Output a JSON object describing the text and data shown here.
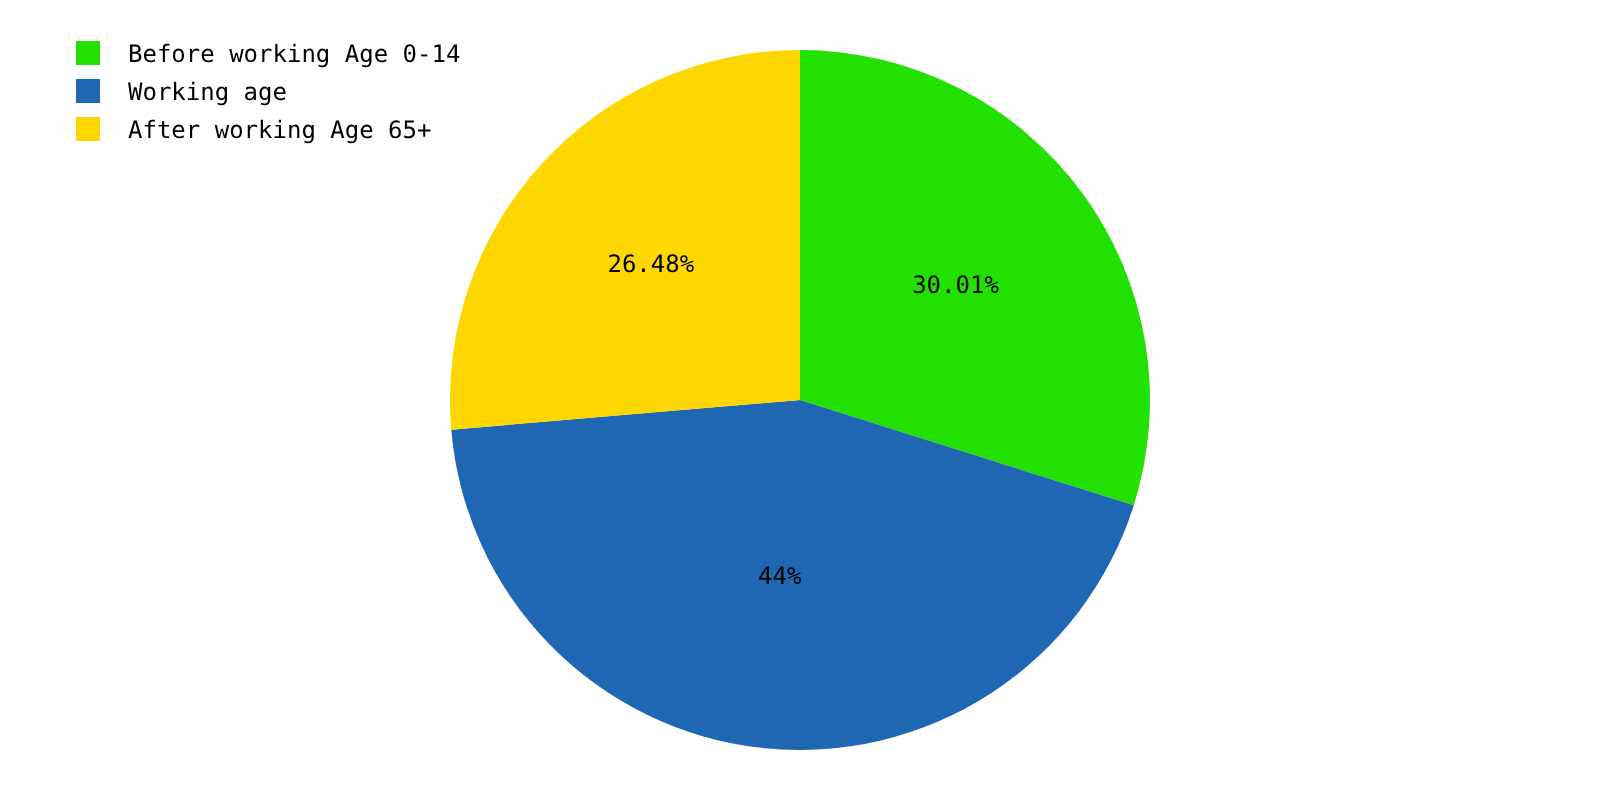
{
  "chart_data": {
    "type": "pie",
    "categories": [
      "Before working Age 0-14",
      "Working age",
      "After working Age 65+"
    ],
    "values": [
      30.01,
      44,
      26.48
    ],
    "colors": [
      "#22e000",
      "#1f66b3",
      "#ffd700"
    ],
    "value_labels": [
      "30.01%",
      "44%",
      "26.48%"
    ],
    "legend": "top left"
  }
}
